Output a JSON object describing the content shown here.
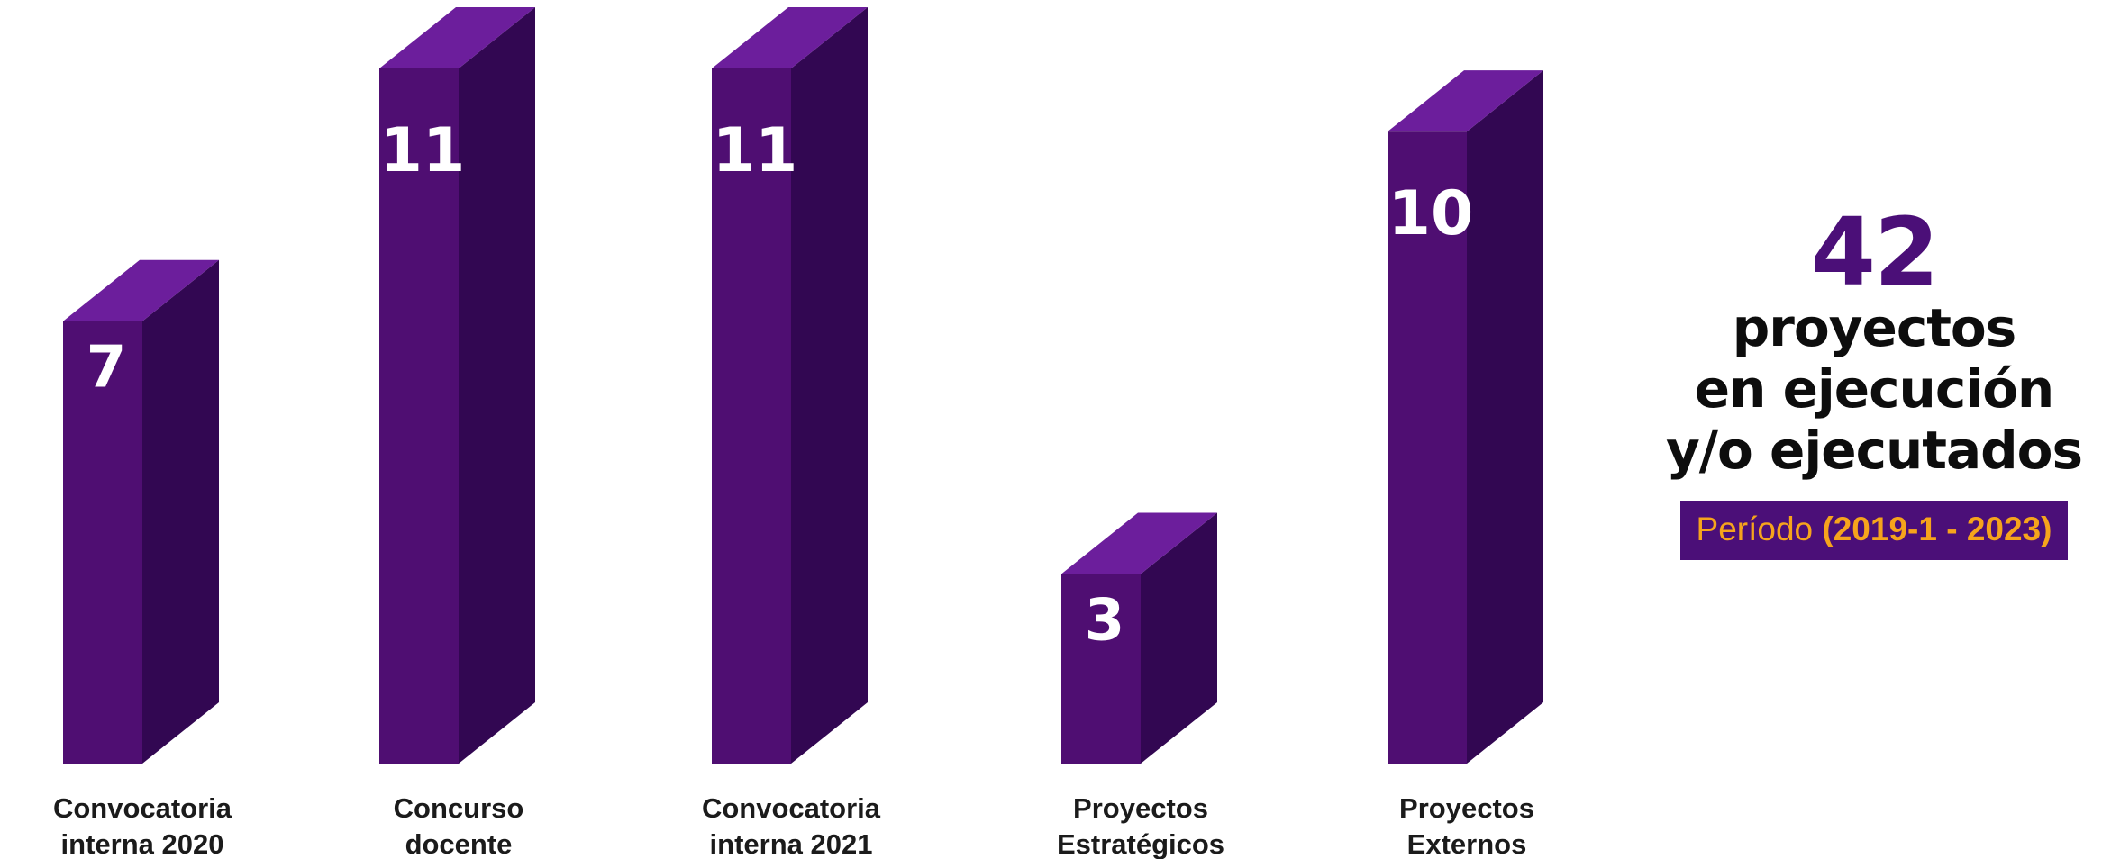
{
  "chart_data": {
    "type": "bar",
    "categories": [
      [
        "Convocatoria",
        "interna 2020"
      ],
      [
        "Concurso",
        "docente"
      ],
      [
        "Convocatoria",
        "interna 2021"
      ],
      [
        "Proyectos",
        "Estratégicos"
      ],
      [
        "Proyectos",
        "Externos"
      ]
    ],
    "values": [
      7,
      11,
      11,
      3,
      10
    ],
    "title": "",
    "xlabel": "",
    "ylabel": "",
    "ylim": [
      0,
      11
    ],
    "grid": false,
    "legend": "none"
  },
  "summary": {
    "total": "42",
    "line1": "proyectos",
    "line2": "en ejecución",
    "line3": "y/o ejecutados",
    "period_label": "Período",
    "period_range": "(2019-1 - 2023)"
  },
  "colors": {
    "bar_front": "#4f0e72",
    "bar_side": "#320752",
    "bar_top": "#6c1e9c",
    "accent_text": "#4b0f78",
    "period_bg": "#4b0f78",
    "period_text": "#f6a41c"
  }
}
